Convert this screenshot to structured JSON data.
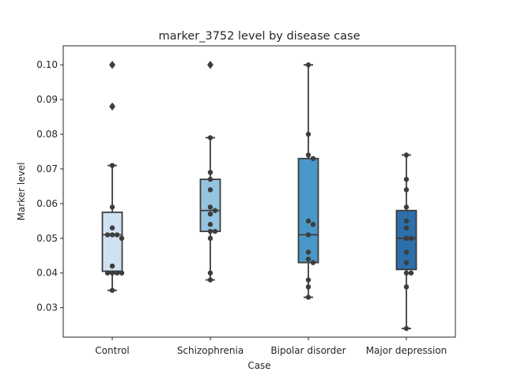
{
  "chart_data": {
    "type": "box",
    "title": "marker_3752 level by disease case",
    "xlabel": "Case",
    "ylabel": "Marker level",
    "ylim": [
      0.0215,
      0.1055
    ],
    "yticks": [
      0.03,
      0.04,
      0.05,
      0.06,
      0.07,
      0.08,
      0.09,
      0.1
    ],
    "ytick_labels": [
      "0.03",
      "0.04",
      "0.05",
      "0.06",
      "0.07",
      "0.08",
      "0.09",
      "0.10"
    ],
    "grid": false,
    "categories": [
      "Control",
      "Schizophrenia",
      "Bipolar disorder",
      "Major depression"
    ],
    "colors": [
      "#d0e1f2",
      "#94c4df",
      "#4a98c9",
      "#2c6faa"
    ],
    "boxes": [
      {
        "q1": 0.0405,
        "median": 0.051,
        "q3": 0.0575,
        "whisker_low": 0.035,
        "whisker_high": 0.071,
        "outliers": [
          0.088,
          0.1
        ]
      },
      {
        "q1": 0.052,
        "median": 0.058,
        "q3": 0.067,
        "whisker_low": 0.038,
        "whisker_high": 0.079,
        "outliers": [
          0.1
        ]
      },
      {
        "q1": 0.043,
        "median": 0.051,
        "q3": 0.073,
        "whisker_low": 0.033,
        "whisker_high": 0.1,
        "outliers": []
      },
      {
        "q1": 0.041,
        "median": 0.05,
        "q3": 0.058,
        "whisker_low": 0.024,
        "whisker_high": 0.074,
        "outliers": []
      }
    ],
    "points": [
      [
        0.1,
        0.088,
        0.071,
        0.059,
        0.053,
        0.051,
        0.051,
        0.051,
        0.05,
        0.042,
        0.04,
        0.04,
        0.04,
        0.04,
        0.035
      ],
      [
        0.1,
        0.079,
        0.069,
        0.067,
        0.064,
        0.059,
        0.058,
        0.057,
        0.054,
        0.052,
        0.052,
        0.05,
        0.04,
        0.038
      ],
      [
        0.1,
        0.08,
        0.074,
        0.073,
        0.055,
        0.054,
        0.051,
        0.046,
        0.044,
        0.043,
        0.038,
        0.036,
        0.033
      ],
      [
        0.074,
        0.067,
        0.064,
        0.059,
        0.055,
        0.053,
        0.05,
        0.05,
        0.046,
        0.043,
        0.04,
        0.04,
        0.036,
        0.024
      ]
    ]
  }
}
